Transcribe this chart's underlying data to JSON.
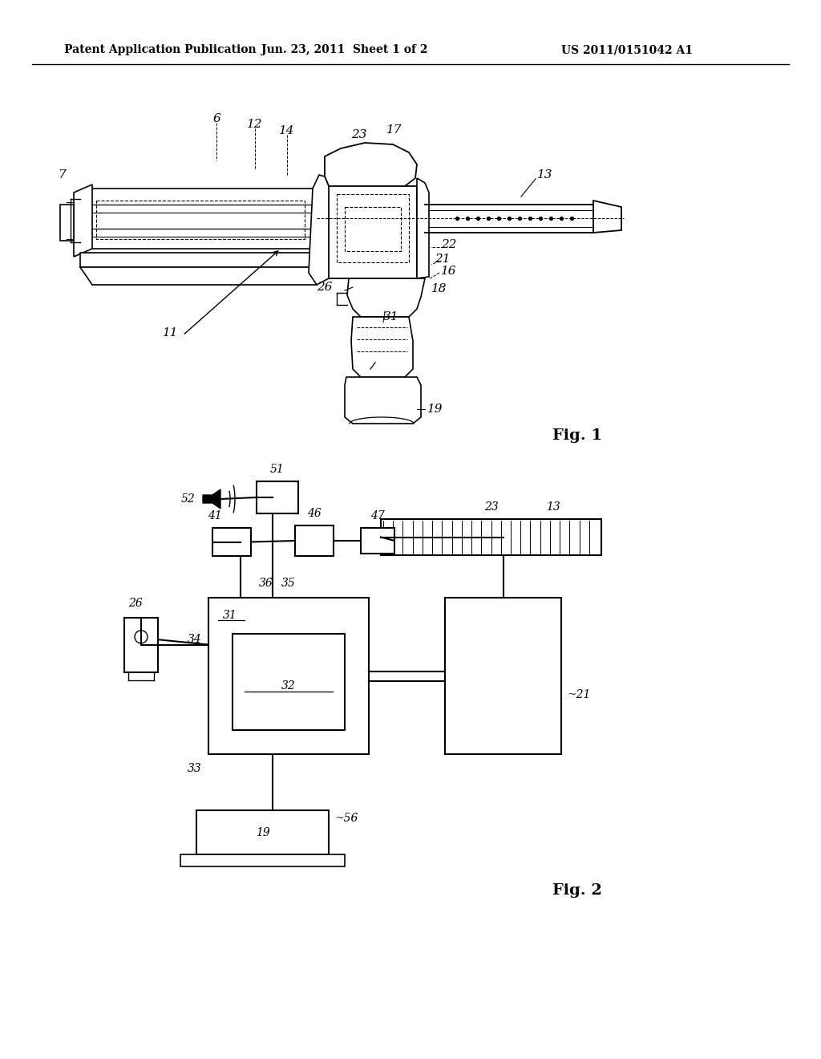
{
  "background_color": "#ffffff",
  "header_left": "Patent Application Publication",
  "header_mid": "Jun. 23, 2011  Sheet 1 of 2",
  "header_right": "US 2011/0151042 A1",
  "fig1_label": "Fig. 1",
  "fig2_label": "Fig. 2"
}
